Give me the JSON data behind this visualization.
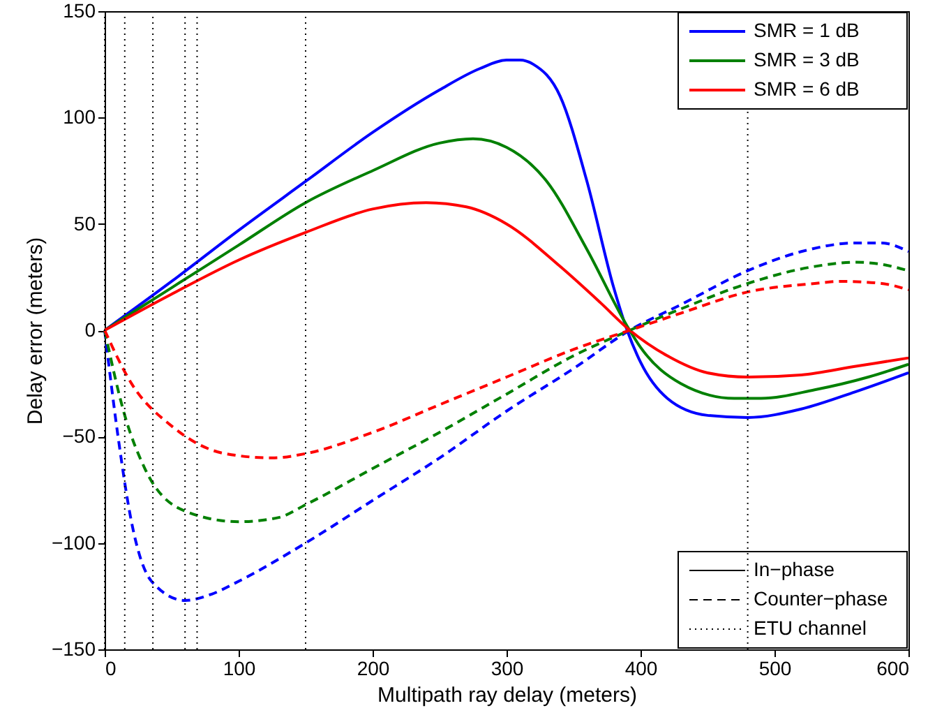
{
  "chart_data": {
    "type": "line",
    "xlabel": "Multipath ray delay (meters)",
    "ylabel": "Delay error (meters)",
    "xlim": [
      0,
      600
    ],
    "ylim": [
      -150,
      150
    ],
    "xticks": [
      0,
      100,
      200,
      300,
      400,
      500,
      600
    ],
    "yticks": [
      -150,
      -100,
      -50,
      0,
      50,
      100,
      150
    ],
    "grid": false,
    "legend": "top right",
    "series": [
      {
        "name": "SMR = 1 dB",
        "color": "#0000ff",
        "line_style": "solid",
        "x": [
          0,
          50,
          100,
          150,
          200,
          250,
          280,
          300,
          310,
          320,
          340,
          360,
          380,
          390,
          400,
          420,
          450,
          480,
          520,
          560,
          600
        ],
        "values": [
          0,
          23,
          47,
          70,
          93,
          113,
          123,
          127,
          127,
          125,
          110,
          70,
          20,
          0,
          -15,
          -32,
          -40,
          -41,
          -37,
          -29,
          -20
        ]
      },
      {
        "name": "SMR = 3 dB",
        "color": "#008000",
        "line_style": "solid",
        "x": [
          0,
          50,
          100,
          150,
          200,
          250,
          275,
          300,
          330,
          360,
          390,
          400,
          430,
          470,
          490,
          530,
          570,
          600
        ],
        "values": [
          0,
          20,
          40,
          60,
          75,
          88,
          90,
          86,
          70,
          38,
          2,
          -8,
          -25,
          -32,
          -32,
          -28,
          -22,
          -16
        ]
      },
      {
        "name": "SMR = 6 dB",
        "color": "#ff0000",
        "line_style": "solid",
        "x": [
          0,
          50,
          100,
          150,
          200,
          240,
          270,
          300,
          340,
          370,
          392,
          420,
          450,
          480,
          520,
          560,
          600
        ],
        "values": [
          0,
          17,
          33,
          46,
          57,
          60,
          58,
          50,
          30,
          13,
          0,
          -12,
          -20,
          -22,
          -21,
          -17,
          -13
        ]
      },
      {
        "color": "#0000ff",
        "line_style": "dashed",
        "x": [
          0,
          10,
          20,
          35,
          60,
          80,
          100,
          150,
          200,
          250,
          300,
          350,
          392,
          430,
          480,
          520,
          560,
          580,
          600
        ],
        "values": [
          0,
          -50,
          -90,
          -118,
          -127,
          -124,
          -118,
          -100,
          -80,
          -60,
          -38,
          -18,
          0,
          12,
          28,
          37,
          41,
          41,
          37
        ]
      },
      {
        "color": "#008000",
        "line_style": "dashed",
        "x": [
          0,
          15,
          30,
          60,
          100,
          130,
          150,
          200,
          250,
          300,
          350,
          392,
          430,
          480,
          530,
          560,
          580,
          600
        ],
        "values": [
          0,
          -40,
          -65,
          -85,
          -90,
          -88,
          -82,
          -65,
          -48,
          -30,
          -12,
          0,
          10,
          22,
          30,
          32,
          31,
          28
        ]
      },
      {
        "color": "#ff0000",
        "line_style": "dashed",
        "x": [
          0,
          20,
          50,
          90,
          125,
          150,
          200,
          250,
          300,
          350,
          392,
          430,
          480,
          530,
          550,
          580,
          600
        ],
        "values": [
          0,
          -25,
          -45,
          -58,
          -60,
          -58,
          -48,
          -35,
          -22,
          -9,
          0,
          8,
          18,
          22,
          23,
          22,
          19
        ]
      }
    ],
    "ref_lines": [
      {
        "axis": "x",
        "value": 0,
        "color": "#000000",
        "line_style": "dotted"
      },
      {
        "axis": "x",
        "value": 15,
        "color": "#000000",
        "line_style": "dotted"
      },
      {
        "axis": "x",
        "value": 36,
        "color": "#000000",
        "line_style": "dotted"
      },
      {
        "axis": "x",
        "value": 60,
        "color": "#000000",
        "line_style": "dotted"
      },
      {
        "axis": "x",
        "value": 69,
        "color": "#000000",
        "line_style": "dotted"
      },
      {
        "axis": "x",
        "value": 150,
        "color": "#000000",
        "line_style": "dotted"
      },
      {
        "axis": "x",
        "value": 480,
        "color": "#000000",
        "line_style": "dotted"
      }
    ],
    "annotations": [
      "In−phase",
      "Counter−phase",
      "ETU channel"
    ]
  }
}
